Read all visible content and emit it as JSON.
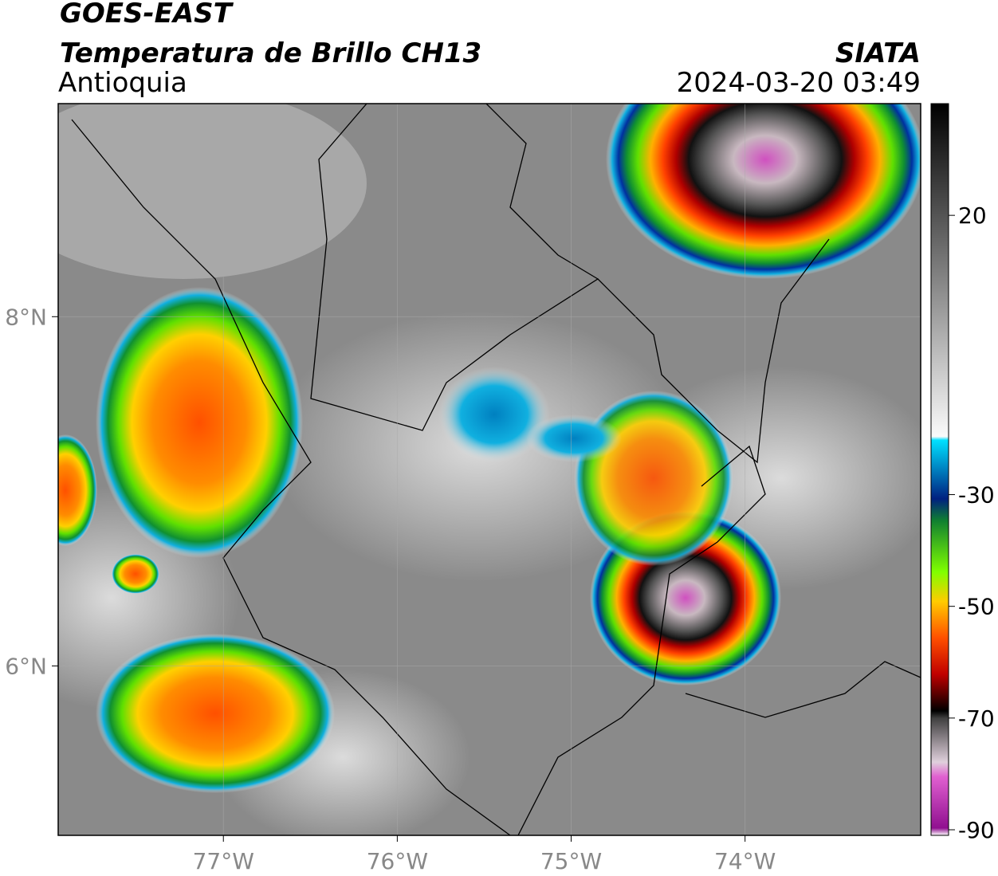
{
  "header": {
    "title": "GOES-EAST",
    "subtitle": "Temperatura de Brillo CH13",
    "region": "Antioquia",
    "source": "SIATA",
    "datetime": "2024-03-20 03:49"
  },
  "map": {
    "xlim": [
      -77.95,
      -72.99
    ],
    "ylim": [
      5.03,
      9.22
    ],
    "xticks": [
      {
        "value": -77,
        "label": "77°W"
      },
      {
        "value": -76,
        "label": "76°W"
      },
      {
        "value": -75,
        "label": "75°W"
      },
      {
        "value": -74,
        "label": "74°W"
      }
    ],
    "yticks": [
      {
        "value": 6,
        "label": "6°N"
      },
      {
        "value": 8,
        "label": "8°N"
      }
    ],
    "grid": true
  },
  "colorbar": {
    "lim": [
      -91,
      40
    ],
    "ticks": [
      20,
      -30,
      -50,
      -70,
      -90
    ]
  }
}
